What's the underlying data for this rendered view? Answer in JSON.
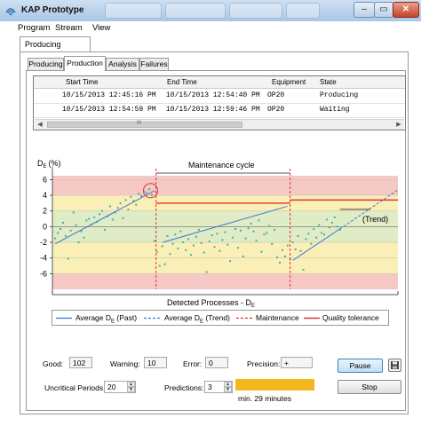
{
  "window": {
    "title": "KAP Prototype"
  },
  "menu": [
    "Program",
    "Stream",
    "View"
  ],
  "outer_tab": "Producing",
  "tabs": [
    "Producing",
    "Production",
    "Analysis",
    "Failures"
  ],
  "active_tab": "Production",
  "table": {
    "columns": [
      "Start Time",
      "End Time",
      "Equipment",
      "State"
    ],
    "rows": [
      {
        "start": "10/15/2013 12:45:16 PM",
        "end": "10/15/2013 12:54:40 PM",
        "equipment": "OP20",
        "state": "Producing"
      },
      {
        "start": "10/15/2013 12:54:59 PM",
        "end": "10/15/2013 12:59:46 PM",
        "equipment": "OP20",
        "state": "Waiting"
      }
    ],
    "scroll_grip": "III"
  },
  "chart": {
    "y_label": "D",
    "y_label_sub": "E",
    "y_label_unit": "(%)",
    "maintenance_label": "Maintenance cycle",
    "trend_label": "(Trend)",
    "x_label": "Detected Processes - D",
    "x_label_sub": "E"
  },
  "chart_data": {
    "type": "scatter",
    "ylim": [
      -8,
      6.5
    ],
    "yticks": [
      6,
      4,
      2,
      0,
      -2,
      -4,
      -6
    ],
    "x": [
      1,
      2,
      3,
      4,
      5,
      6,
      7,
      8,
      9,
      10,
      11,
      12,
      13,
      14,
      15,
      16,
      17,
      18,
      19,
      20,
      21,
      22,
      23,
      24,
      25,
      26,
      27,
      28,
      29,
      30,
      31,
      32,
      33,
      34,
      35,
      36,
      37,
      38,
      39,
      40,
      41,
      42,
      43,
      44,
      45,
      46,
      47,
      48,
      49,
      50,
      51,
      52,
      53,
      54,
      55,
      56,
      57,
      58,
      59,
      60,
      61,
      62,
      63,
      64,
      65,
      66,
      67,
      68,
      69,
      70,
      71,
      72,
      73,
      74,
      75,
      76,
      77,
      78,
      79,
      80,
      81,
      82,
      83,
      84,
      85,
      86,
      87,
      88,
      89,
      90,
      91,
      92,
      93,
      94,
      95,
      96,
      97,
      98,
      99,
      100,
      101,
      102,
      103,
      104,
      105,
      106,
      107,
      108,
      109,
      110
    ],
    "values": [
      -1.5,
      -0.8,
      -0.3,
      0.5,
      -1.2,
      -4.1,
      -0.5,
      1.8,
      0.2,
      -2.0,
      -0.6,
      -1.4,
      0.8,
      1.0,
      0.3,
      1.2,
      0.6,
      1.6,
      2.0,
      -0.4,
      1.3,
      2.6,
      0.9,
      1.8,
      2.4,
      3.0,
      1.1,
      3.4,
      2.2,
      3.8,
      3.3,
      2.8,
      4.2,
      3.9,
      4.5,
      4.3,
      4.8,
      4.0,
      -1.8,
      -3.2,
      -5.0,
      -2.5,
      -4.8,
      -1.2,
      -3.5,
      -2.2,
      -1.0,
      -2.8,
      -0.6,
      -2.0,
      -3.0,
      -1.6,
      -3.6,
      -2.4,
      -1.3,
      -0.4,
      -2.1,
      -3.3,
      -5.8,
      -1.9,
      -1.1,
      -2.6,
      -0.9,
      -3.1,
      -1.7,
      -0.7,
      -2.3,
      -4.4,
      -1.4,
      -0.3,
      -2.7,
      -0.5,
      -3.8,
      -1.5,
      -0.2,
      0.4,
      -0.6,
      -1.8,
      0.8,
      -3.2,
      -1.0,
      -0.8,
      0.1,
      -2.2,
      -0.4,
      -3.9,
      -4.6,
      -3.0,
      -3.8,
      -2.4,
      -4.2,
      -2.0,
      -2.9,
      -1.2,
      -3.1,
      -5.5,
      -1.6,
      -0.9,
      -2.2,
      -0.3,
      -1.4,
      0.2,
      -0.8,
      -1.0,
      0.9,
      -0.1,
      0.5,
      1.2,
      0.0,
      -0.4
    ],
    "series": [
      {
        "name": "Average D_E (Past)",
        "segments": [
          [
            [
              1,
              -2.2
            ],
            [
              37,
              4.6
            ]
          ],
          [
            [
              40,
              -2.0
            ],
            [
              85,
              2.6
            ]
          ],
          [
            [
              87,
              -4.3
            ],
            [
              104,
              -0.3
            ]
          ]
        ]
      },
      {
        "name": "Average D_E (Trend)",
        "segments": [
          [
            [
              104,
              -0.3
            ],
            [
              125,
              4.7
            ]
          ]
        ]
      },
      {
        "name": "Maintenance",
        "x": [
          37.5,
          86
        ]
      },
      {
        "name": "Quality tolerance",
        "segments": [
          [
            [
              37.5,
              3.0
            ],
            [
              86,
              3.0
            ]
          ],
          [
            [
              86,
              3.4
            ],
            [
              125,
              3.4
            ]
          ]
        ]
      }
    ],
    "bands": [
      {
        "from": 4,
        "to": 6.5,
        "color": "#f6c8c6"
      },
      {
        "from": 2,
        "to": 4,
        "color": "#fbefb8"
      },
      {
        "from": -2,
        "to": 2,
        "color": "#e0ecc6"
      },
      {
        "from": -6,
        "to": -2,
        "color": "#fbefb8"
      },
      {
        "from": -8,
        "to": -6,
        "color": "#f6c8c6"
      }
    ]
  },
  "legend": {
    "items": [
      {
        "label_pre": "Average D",
        "sub": "E",
        "label_post": " (Past)",
        "color": "#3b74d6",
        "style": "solid"
      },
      {
        "label_pre": "Average D",
        "sub": "E",
        "label_post": " (Trend)",
        "color": "#3b74d6",
        "style": "dashed"
      },
      {
        "label_pre": "Maintenance",
        "sub": "",
        "label_post": "",
        "color": "#e03434",
        "style": "dashed"
      },
      {
        "label_pre": "Quality tolerance",
        "sub": "",
        "label_post": "",
        "color": "#e03434",
        "style": "solid"
      }
    ]
  },
  "stats": {
    "good_label": "Good:",
    "good_value": "102",
    "warning_label": "Warning:",
    "warning_value": "10",
    "error_label": "Error:",
    "error_value": "0",
    "precision_label": "Precision:",
    "precision_value": "+"
  },
  "controls": {
    "uncritical_label": "Uncritical Periods:",
    "uncritical_value": "20",
    "predictions_label": "Predictions:",
    "predictions_value": "3",
    "progress_text": "min. 29 minutes",
    "progress_color": "#f4b81f",
    "pause_label": "Pause",
    "stop_label": "Stop"
  },
  "colors": {
    "point": "#3bb3a6",
    "trend": "#3b74d6",
    "maintenance": "#e03434",
    "circle": "#e03434"
  }
}
